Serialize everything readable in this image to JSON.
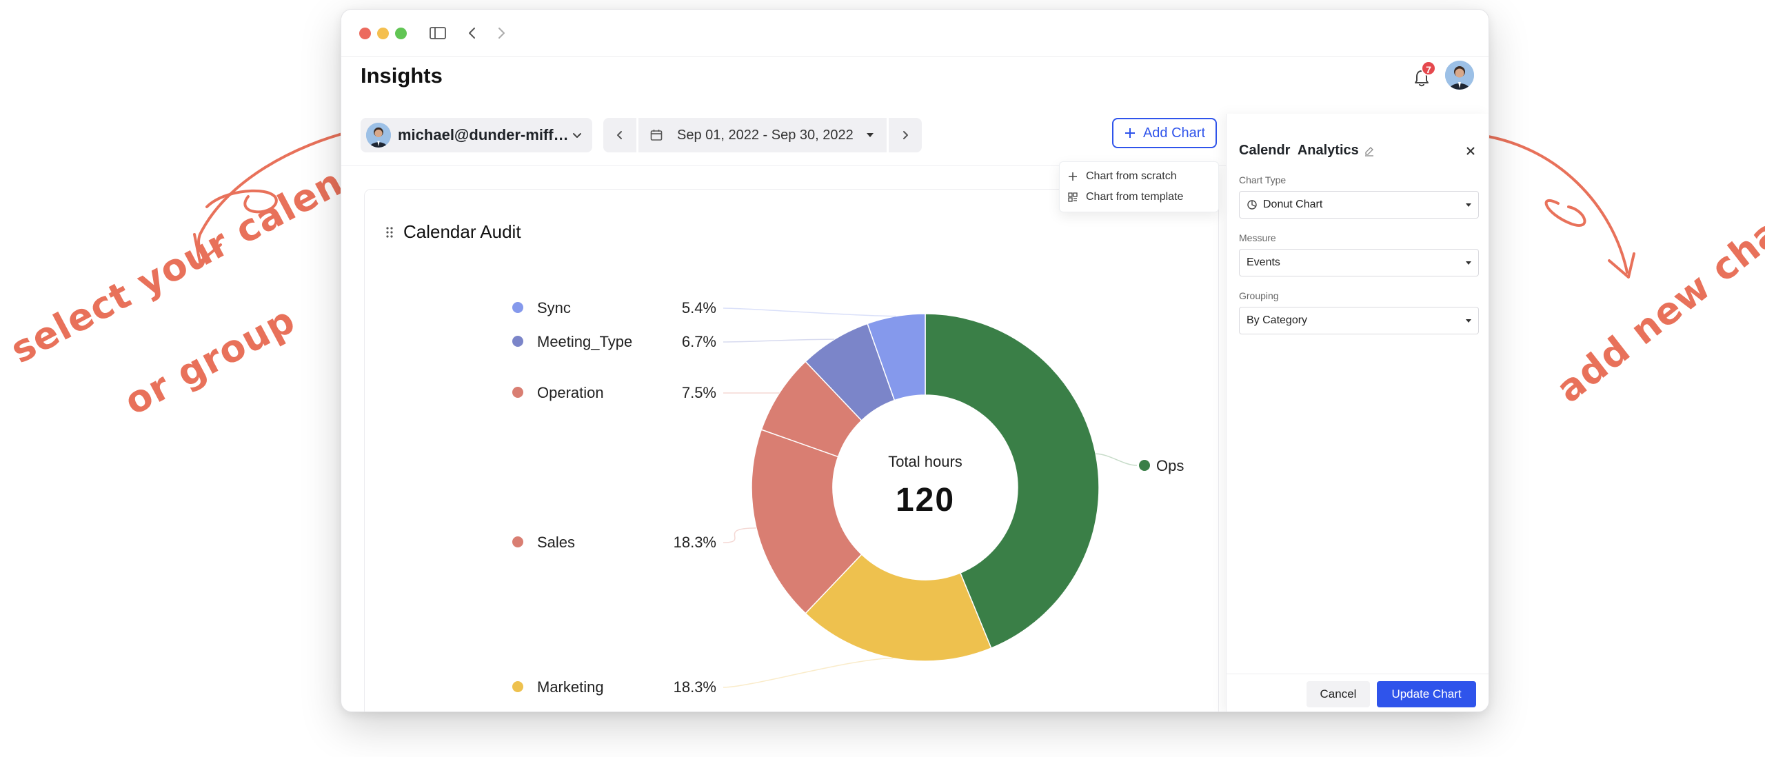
{
  "annotations": {
    "left_line1": "select your calendar",
    "left_line2": "or group",
    "right": "add new chart",
    "color": "#e8715a"
  },
  "window": {
    "traffic_lights": [
      "#ec6a5e",
      "#f4bf4f",
      "#61c554"
    ]
  },
  "header": {
    "title": "Insights",
    "notification_count": "7"
  },
  "toolbar": {
    "user": "michael@dunder-mifflin.com",
    "date_range": "Sep 01, 2022 - Sep 30, 2022",
    "add_chart_label": "Add Chart"
  },
  "add_chart_menu": {
    "items": [
      "Chart from scratch",
      "Chart from template"
    ]
  },
  "card": {
    "title": "Calendar Audit"
  },
  "chart_data": {
    "type": "pie",
    "subtype": "donut",
    "title": "Calendar Audit",
    "center_label": "Total hours",
    "center_value": "120",
    "legend_placement": "left",
    "series": [
      {
        "name": "Ops",
        "value": 43.8,
        "label": "",
        "color": "#3a7f47"
      },
      {
        "name": "Marketing",
        "value": 18.3,
        "label": "18.3%",
        "color": "#eec14e"
      },
      {
        "name": "Sales",
        "value": 18.3,
        "label": "18.3%",
        "color": "#d97e72"
      },
      {
        "name": "Operation",
        "value": 7.5,
        "label": "7.5%",
        "color": "#d97e72"
      },
      {
        "name": "Meeting_Type",
        "value": 6.7,
        "label": "6.7%",
        "color": "#7b85c9"
      },
      {
        "name": "Sync",
        "value": 5.4,
        "label": "5.4%",
        "color": "#8599ec"
      }
    ]
  },
  "panel": {
    "title": "Calendr  Analytics",
    "chart_type_label": "Chart Type",
    "chart_type_value": "Donut Chart",
    "measure_label": "Messure",
    "measure_value": "Events",
    "grouping_label": "Grouping",
    "grouping_value": "By Category",
    "cancel_label": "Cancel",
    "update_label": "Update Chart",
    "accent": "#2f54eb"
  }
}
